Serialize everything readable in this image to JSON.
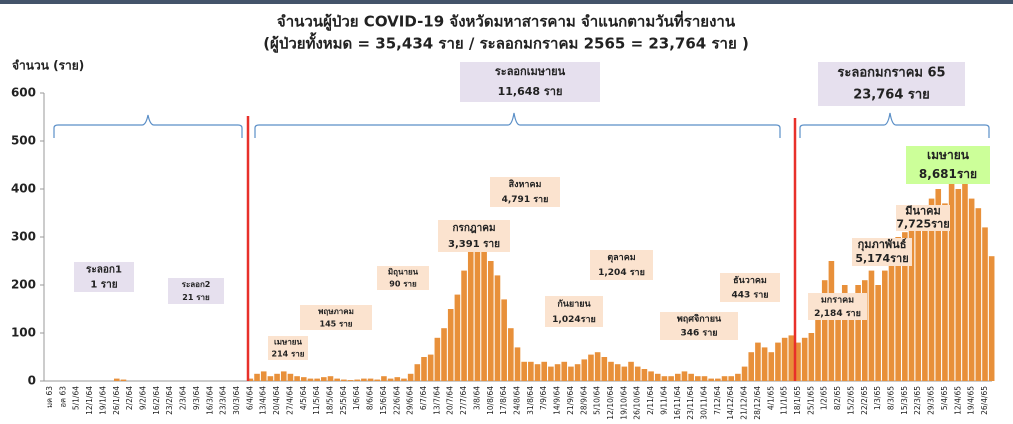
{
  "chart_data": {
    "type": "bar",
    "title": "จำนวนผู้ป่วย COVID-19 จังหวัดมหาสารคาม จำแนกตามวันที่รายงาน",
    "subtitle": "(ผู้ป่วยทั้งหมด = 35,434 ราย / ระลอกมกราคม 2565 = 23,764 ราย )",
    "y_label": "จำนวน (ราย)",
    "color": "#e8903a",
    "ylim": [
      0,
      600
    ],
    "yticks": [
      0,
      100,
      200,
      300,
      400,
      500,
      600
    ],
    "categories": [
      "มค 63",
      null,
      "อค 63",
      null,
      "5/1/64",
      null,
      "12/1/64",
      null,
      "19/1/64",
      null,
      "26/1/64",
      null,
      "2/2/64",
      null,
      "9/2/64",
      null,
      "16/2/64",
      null,
      "23/2/64",
      null,
      "2/3/64",
      null,
      "9/3/64",
      null,
      "16/3/64",
      null,
      "23/3/64",
      null,
      "30/3/64",
      null,
      "6/4/64",
      null,
      "13/4/64",
      null,
      "20/4/64",
      null,
      "27/4/64",
      null,
      "4/5/64",
      null,
      "11/5/64",
      null,
      "18/5/64",
      null,
      "25/5/64",
      null,
      "1/6/64",
      null,
      "8/6/64",
      null,
      "15/6/64",
      null,
      "22/6/64",
      null,
      "29/6/64",
      null,
      "6/7/64",
      null,
      "13/7/64",
      null,
      "20/7/64",
      null,
      "27/7/64",
      null,
      "3/8/64",
      null,
      "10/8/64",
      null,
      "17/8/64",
      null,
      "24/8/64",
      null,
      "31/8/64",
      null,
      "7/9/64",
      null,
      "14/9/64",
      null,
      "21/9/64",
      null,
      "28/9/64",
      null,
      "5/10/64",
      null,
      "12/10/64",
      null,
      "19/10/64",
      null,
      "26/10/64",
      null,
      "2/11/64",
      null,
      "9/11/64",
      null,
      "16/11/64",
      null,
      "23/11/64",
      null,
      "30/11/64",
      null,
      "7/12/64",
      null,
      "14/12/64",
      null,
      "21/12/64",
      null,
      "28/12/64",
      null,
      "4/1/65",
      null,
      "11/1/65",
      null,
      "18/1/65",
      null,
      "25/1/65",
      null,
      "1/2/65",
      null,
      "8/2/65",
      null,
      "15/2/65",
      null,
      "22/2/65",
      null,
      "1/3/65",
      null,
      "8/3/65",
      null,
      "15/3/65",
      null,
      "22/3/65",
      null,
      "29/3/65",
      null,
      "5/4/65",
      null,
      "12/4/65",
      null,
      "19/4/65",
      null,
      "26/4/65",
      null
    ],
    "values": [
      0,
      0,
      0,
      0,
      0,
      0,
      0,
      0,
      0,
      0,
      5,
      3,
      0,
      0,
      0,
      0,
      0,
      0,
      0,
      0,
      0,
      0,
      0,
      0,
      0,
      0,
      0,
      0,
      0,
      0,
      5,
      15,
      20,
      10,
      15,
      20,
      15,
      10,
      8,
      5,
      5,
      8,
      10,
      5,
      3,
      2,
      3,
      5,
      5,
      3,
      10,
      5,
      8,
      5,
      15,
      35,
      50,
      55,
      90,
      110,
      150,
      180,
      230,
      300,
      330,
      290,
      250,
      220,
      170,
      110,
      70,
      40,
      40,
      35,
      40,
      30,
      35,
      40,
      30,
      35,
      45,
      55,
      60,
      50,
      40,
      35,
      30,
      40,
      30,
      25,
      20,
      15,
      10,
      10,
      15,
      20,
      15,
      10,
      10,
      5,
      5,
      10,
      10,
      15,
      30,
      60,
      80,
      70,
      60,
      80,
      90,
      95,
      80,
      90,
      100,
      150,
      210,
      250,
      180,
      200,
      170,
      200,
      210,
      230,
      200,
      230,
      260,
      300,
      310,
      330,
      350,
      360,
      380,
      400,
      370,
      420,
      400,
      440,
      380,
      360,
      320,
      260
    ],
    "annotations": [
      {
        "lines": [
          "ระลอก1",
          "1 ราย"
        ]
      },
      {
        "lines": [
          "ระลอก2",
          "21 ราย"
        ]
      },
      {
        "lines": [
          "ระลอกเมษายน",
          "11,648 ราย"
        ]
      },
      {
        "lines": [
          "ระลอกมกราคม 65",
          "23,764 ราย"
        ]
      },
      {
        "lines": [
          "เมษายน",
          "214 ราย"
        ]
      },
      {
        "lines": [
          "พฤษภาคม",
          "145 ราย"
        ]
      },
      {
        "lines": [
          "มิถุนายน",
          "90 ราย"
        ]
      },
      {
        "lines": [
          "กรกฎาคม",
          "3,391 ราย"
        ]
      },
      {
        "lines": [
          "สิงหาคม",
          "4,791 ราย"
        ]
      },
      {
        "lines": [
          "กันยายน",
          "1,024ราย"
        ]
      },
      {
        "lines": [
          "ตุลาคม",
          "1,204 ราย"
        ]
      },
      {
        "lines": [
          "พฤศจิกายน",
          "346 ราย"
        ]
      },
      {
        "lines": [
          "ธันวาคม",
          "443 ราย"
        ]
      },
      {
        "lines": [
          "มกราคม",
          "2,184 ราย"
        ]
      },
      {
        "lines": [
          "กุมภาพันธ์",
          "5,174ราย"
        ]
      },
      {
        "lines": [
          "มีนาคม",
          "7,725ราย"
        ]
      },
      {
        "lines": [
          "เมษายน",
          "8,681ราย"
        ]
      }
    ]
  }
}
